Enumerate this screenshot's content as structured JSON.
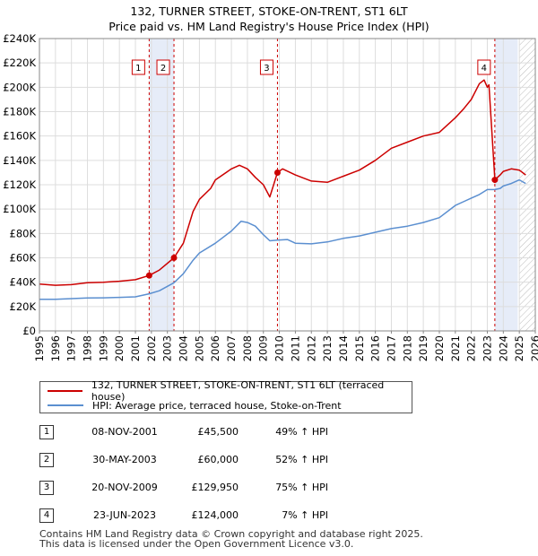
{
  "title": {
    "line1": "132, TURNER STREET, STOKE-ON-TRENT, ST1 6LT",
    "line2": "Price paid vs. HM Land Registry's House Price Index (HPI)"
  },
  "chart_data": {
    "type": "line",
    "title": "132, TURNER STREET, STOKE-ON-TRENT, ST1 6LT — Price paid vs. HM Land Registry's House Price Index (HPI)",
    "xlabel": "",
    "ylabel": "",
    "xlim": [
      1995,
      2026
    ],
    "ylim": [
      0,
      240000
    ],
    "grid": true,
    "x_ticks": [
      "1995",
      "1996",
      "1997",
      "1998",
      "1999",
      "2000",
      "2001",
      "2002",
      "2003",
      "2004",
      "2005",
      "2006",
      "2007",
      "2008",
      "2009",
      "2010",
      "2011",
      "2012",
      "2013",
      "2014",
      "2015",
      "2016",
      "2017",
      "2018",
      "2019",
      "2020",
      "2021",
      "2022",
      "2023",
      "2024",
      "2025",
      "2026"
    ],
    "y_ticks": [
      "£0",
      "£20K",
      "£40K",
      "£60K",
      "£80K",
      "£100K",
      "£120K",
      "£140K",
      "£160K",
      "£180K",
      "£200K",
      "£220K",
      "£240K"
    ],
    "y_tick_values": [
      0,
      20000,
      40000,
      60000,
      80000,
      100000,
      120000,
      140000,
      160000,
      180000,
      200000,
      220000,
      240000
    ],
    "series": [
      {
        "name": "132, TURNER STREET, STOKE-ON-TRENT, ST1 6LT (terraced house)",
        "color": "#cc0000",
        "x": [
          1995.0,
          1996.0,
          1997.0,
          1998.0,
          1999.0,
          2000.0,
          2001.0,
          2001.86,
          2002.5,
          2003.41,
          2004.0,
          2004.6,
          2005.0,
          2005.7,
          2006.0,
          2007.0,
          2007.5,
          2008.0,
          2008.5,
          2009.0,
          2009.4,
          2009.88,
          2010.2,
          2011.0,
          2012.0,
          2013.0,
          2014.0,
          2015.0,
          2016.0,
          2017.0,
          2018.0,
          2019.0,
          2020.0,
          2021.0,
          2021.5,
          2022.0,
          2022.5,
          2022.8,
          2023.0,
          2023.1,
          2023.47,
          2023.8,
          2024.0,
          2024.5,
          2025.0,
          2025.4
        ],
        "y": [
          38500,
          37500,
          38000,
          39500,
          40000,
          40800,
          42000,
          45500,
          50000,
          60000,
          72000,
          98000,
          108000,
          117000,
          124000,
          133000,
          136000,
          133000,
          126000,
          120000,
          110000,
          129950,
          133000,
          128000,
          123000,
          122000,
          127000,
          132000,
          140000,
          150000,
          155000,
          160000,
          163000,
          175000,
          182000,
          190000,
          203000,
          206000,
          200000,
          202000,
          124000,
          128000,
          131000,
          133000,
          132000,
          128000
        ]
      },
      {
        "name": "HPI: Average price, terraced house, Stoke-on-Trent",
        "color": "#5b8fd0",
        "x": [
          1995.0,
          1996.0,
          1997.0,
          1998.0,
          1999.0,
          2000.0,
          2001.0,
          2001.86,
          2002.5,
          2003.41,
          2004.0,
          2004.6,
          2005.0,
          2006.0,
          2007.0,
          2007.6,
          2008.0,
          2008.5,
          2009.0,
          2009.4,
          2009.88,
          2010.5,
          2011.0,
          2012.0,
          2013.0,
          2014.0,
          2015.0,
          2016.0,
          2017.0,
          2018.0,
          2019.0,
          2020.0,
          2021.0,
          2021.5,
          2022.0,
          2022.5,
          2023.0,
          2023.47,
          2023.8,
          2024.0,
          2024.5,
          2025.0,
          2025.4
        ],
        "y": [
          26000,
          26000,
          26500,
          27000,
          27200,
          27500,
          28000,
          30500,
          33000,
          39500,
          47000,
          58000,
          64000,
          72000,
          82000,
          90000,
          89000,
          86000,
          79000,
          74000,
          74500,
          75000,
          72000,
          71500,
          73000,
          76000,
          78000,
          81000,
          84000,
          86000,
          89000,
          93000,
          103000,
          106000,
          109000,
          112000,
          116000,
          116000,
          117000,
          119000,
          121000,
          124000,
          121000
        ]
      }
    ],
    "transactions": [
      {
        "num": "1",
        "x": 2001.86,
        "price": 45500
      },
      {
        "num": "2",
        "x": 2003.41,
        "price": 60000
      },
      {
        "num": "3",
        "x": 2009.88,
        "price": 129950
      },
      {
        "num": "4",
        "x": 2023.47,
        "price": 124000
      }
    ],
    "shaded_ranges": [
      [
        2001.86,
        2003.41
      ],
      [
        2023.47,
        2024.9
      ]
    ],
    "hatched_from": 2025.0,
    "legend_position": "below"
  },
  "legend": {
    "items": [
      {
        "label": "132, TURNER STREET, STOKE-ON-TRENT, ST1 6LT (terraced house)",
        "color": "#cc0000"
      },
      {
        "label": "HPI: Average price, terraced house, Stoke-on-Trent",
        "color": "#5b8fd0"
      }
    ]
  },
  "table": {
    "rows": [
      {
        "num": "1",
        "date": "08-NOV-2001",
        "price": "£45,500",
        "hpi": "49% ↑ HPI"
      },
      {
        "num": "2",
        "date": "30-MAY-2003",
        "price": "£60,000",
        "hpi": "52% ↑ HPI"
      },
      {
        "num": "3",
        "date": "20-NOV-2009",
        "price": "£129,950",
        "hpi": "75% ↑ HPI"
      },
      {
        "num": "4",
        "date": "23-JUN-2023",
        "price": "£124,000",
        "hpi": "7% ↑ HPI"
      }
    ]
  },
  "footer": {
    "line1": "Contains HM Land Registry data © Crown copyright and database right 2025.",
    "line2": "This data is licensed under the Open Government Licence v3.0."
  }
}
